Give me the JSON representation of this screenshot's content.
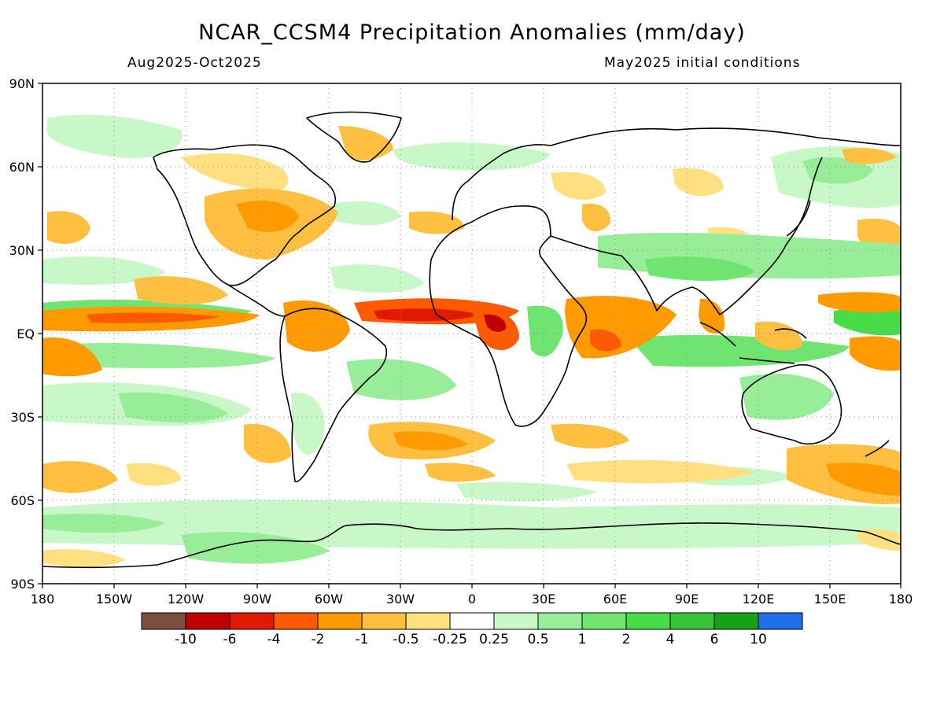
{
  "title": "NCAR_CCSM4 Precipitation Anomalies (mm/day)",
  "subtitle_left": "Aug2025-Oct2025",
  "subtitle_right": "May2025 initial conditions",
  "lat_labels": [
    "90N",
    "60N",
    "30N",
    "EQ",
    "30S",
    "60S",
    "90S"
  ],
  "lon_labels": [
    "180",
    "150W",
    "120W",
    "90W",
    "60W",
    "30W",
    "0",
    "30E",
    "60E",
    "90E",
    "120E",
    "150E",
    "180"
  ],
  "colorbar": {
    "colors": [
      "#7a4f40",
      "#c00000",
      "#e01a00",
      "#ff5a00",
      "#ff9a00",
      "#ffbf40",
      "#ffe080",
      "#ffffff",
      "#c8f8c8",
      "#98ee98",
      "#70e470",
      "#48dc48",
      "#38c438",
      "#18a018",
      "#2070e8"
    ],
    "labels": [
      "-10",
      "-6",
      "-4",
      "-2",
      "-1",
      "-0.5",
      "-0.25",
      "0.25",
      "0.5",
      "1",
      "2",
      "4",
      "6",
      "10"
    ]
  }
}
